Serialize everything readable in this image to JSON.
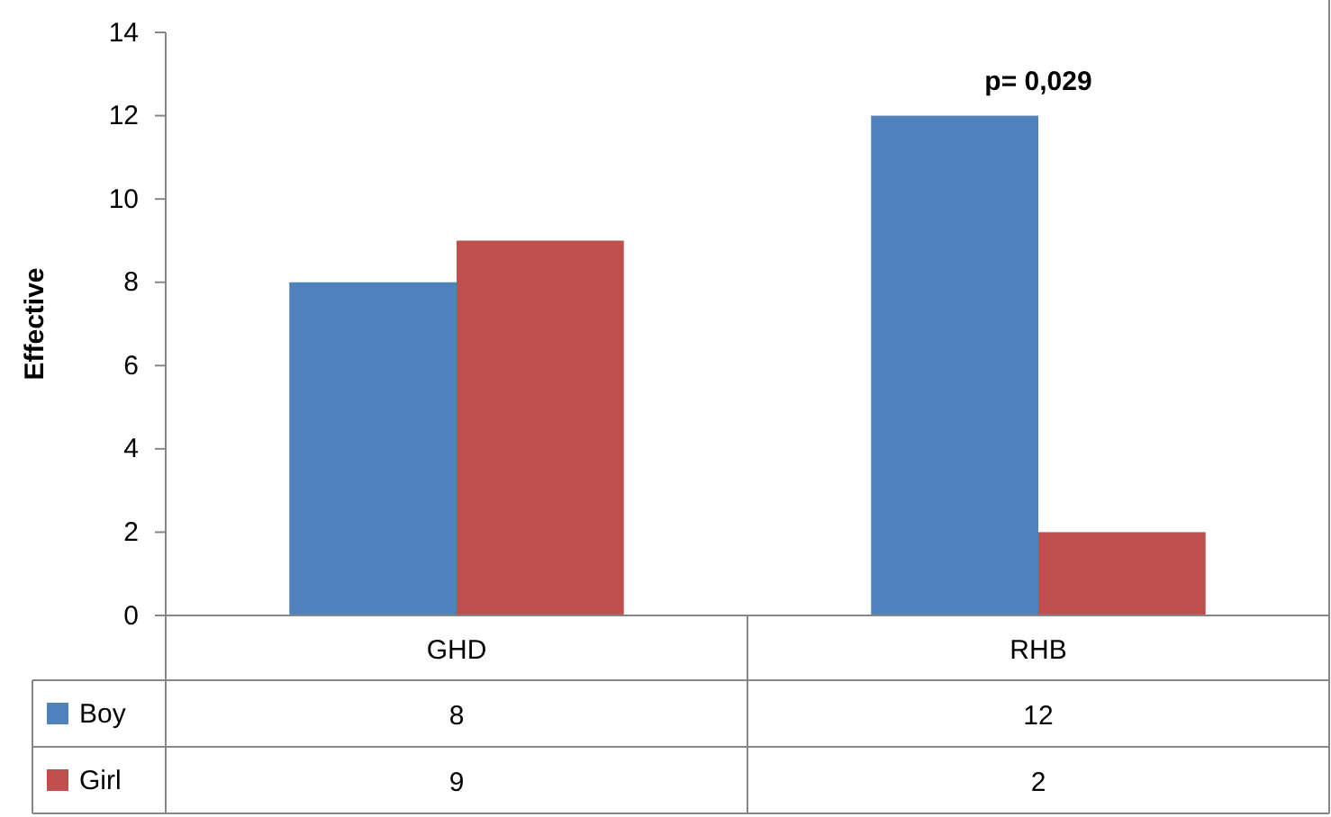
{
  "chart_data": {
    "type": "bar",
    "ylabel": "Effective",
    "categories": [
      "GHD",
      "RHB"
    ],
    "series": [
      {
        "name": "Boy",
        "color": "#4f81bd",
        "values": [
          8,
          12
        ]
      },
      {
        "name": "Girl",
        "color": "#c0504d",
        "values": [
          9,
          2
        ]
      }
    ],
    "ylim": [
      0,
      14
    ],
    "yticks": [
      0,
      2,
      4,
      6,
      8,
      10,
      12,
      14
    ],
    "grid": false,
    "legend": "bottom left",
    "data_labels": true,
    "annotations": [
      "p= 0,029"
    ]
  }
}
